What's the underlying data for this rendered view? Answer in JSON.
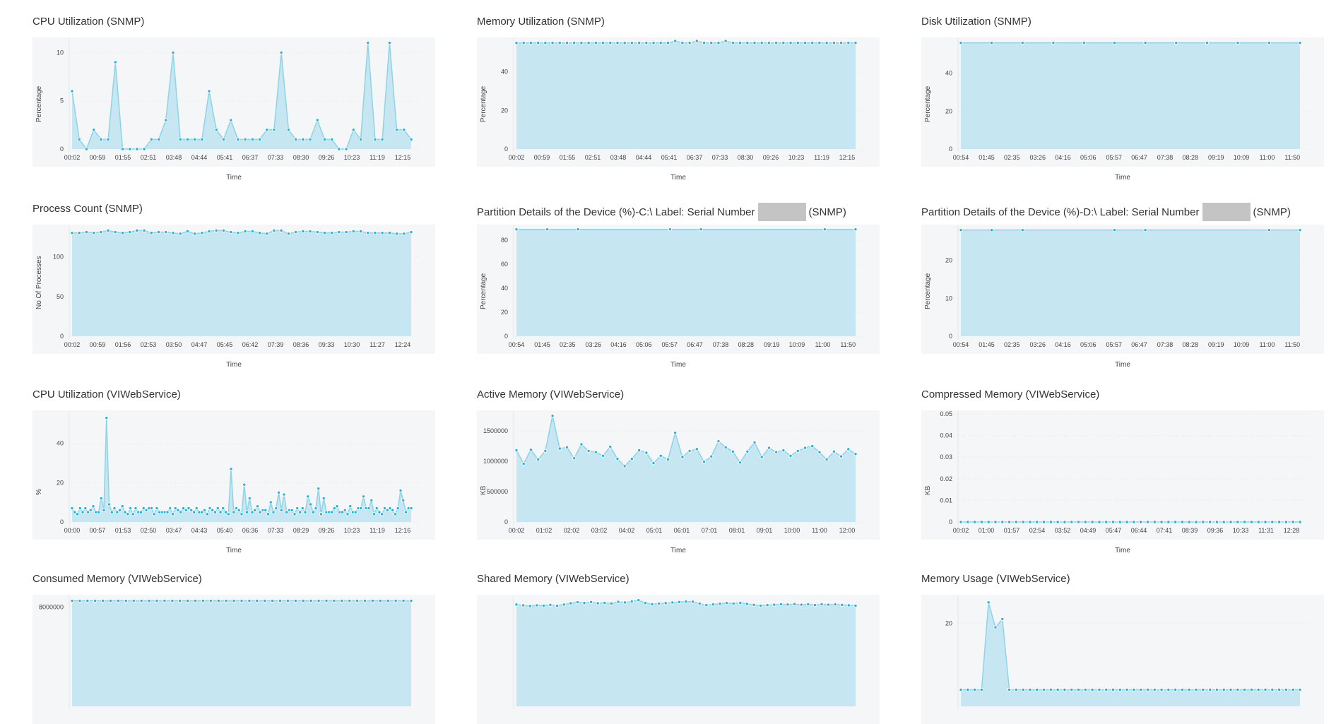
{
  "colors": {
    "fill": "#c6e6f1",
    "line": "#8fd3e8",
    "point": "#1fb4dc",
    "panel_bg": "#f5f6f8",
    "redaction": "#c4c4c4"
  },
  "chart_data": [
    {
      "id": "cpu-snmp",
      "type": "area",
      "title": "CPU Utilization (SNMP)",
      "xlabel": "Time",
      "ylabel": "Percentage",
      "ylim": [
        0,
        11.2
      ],
      "yticks": [
        0,
        5,
        10
      ],
      "x_ticks": [
        "00:02",
        "00:59",
        "01:55",
        "02:51",
        "03:48",
        "04:44",
        "05:41",
        "06:37",
        "07:33",
        "08:30",
        "09:26",
        "10:23",
        "11:19",
        "12:15"
      ],
      "values": [
        6,
        1,
        0,
        2,
        1,
        1,
        9,
        0,
        0,
        0,
        0,
        1,
        1,
        3,
        10,
        1,
        1,
        1,
        1,
        6,
        2,
        1,
        3,
        1,
        1,
        1,
        1,
        2,
        2,
        10,
        2,
        1,
        1,
        1,
        3,
        1,
        1,
        0,
        0,
        2,
        1,
        11,
        1,
        1,
        11,
        2,
        2,
        1
      ]
    },
    {
      "id": "memory-snmp",
      "type": "area",
      "title": "Memory Utilization (SNMP)",
      "xlabel": "Time",
      "ylabel": "Percentage",
      "ylim": [
        0,
        56
      ],
      "yticks": [
        0,
        20,
        40
      ],
      "x_ticks": [
        "00:02",
        "00:59",
        "01:55",
        "02:51",
        "03:48",
        "04:44",
        "05:41",
        "06:37",
        "07:33",
        "08:30",
        "09:26",
        "10:23",
        "11:19",
        "12:15"
      ],
      "values": [
        55,
        55,
        55,
        55,
        55,
        55,
        55,
        55,
        55,
        55,
        55,
        55,
        55,
        55,
        55,
        55,
        55,
        55,
        55,
        55,
        55,
        55,
        56,
        55,
        55,
        56,
        55,
        55,
        55,
        56,
        55,
        55,
        55,
        55,
        55,
        55,
        55,
        55,
        55,
        55,
        55,
        55,
        55,
        55,
        55,
        55,
        55,
        55
      ]
    },
    {
      "id": "disk-snmp",
      "type": "area",
      "title": "Disk Utilization (SNMP)",
      "xlabel": "Time",
      "ylabel": "Percentage",
      "ylim": [
        0,
        57
      ],
      "yticks": [
        0,
        20,
        40
      ],
      "x_ticks": [
        "00:54",
        "01:45",
        "02:35",
        "03:26",
        "04:16",
        "05:06",
        "05:57",
        "06:47",
        "07:38",
        "08:28",
        "09:19",
        "10:09",
        "11:00",
        "11:50"
      ],
      "x": [
        "00:54",
        "01:55",
        "02:56",
        "03:57",
        "04:58",
        "05:58",
        "06:59",
        "08:00",
        "09:01",
        "10:02",
        "11:04",
        "12:05"
      ],
      "values": [
        56,
        56,
        56,
        56,
        56,
        56,
        56,
        56,
        56,
        56,
        56,
        56
      ]
    },
    {
      "id": "process-count-snmp",
      "type": "area",
      "title": "Process Count (SNMP)",
      "xlabel": "Time",
      "ylabel": "No Of Processes",
      "ylim": [
        0,
        136
      ],
      "yticks": [
        0,
        50,
        100
      ],
      "x_ticks": [
        "00:02",
        "00:59",
        "01:56",
        "02:53",
        "03:50",
        "04:47",
        "05:45",
        "06:42",
        "07:39",
        "08:36",
        "09:33",
        "10:30",
        "11:27",
        "12:24"
      ],
      "values": [
        130,
        130,
        131,
        130,
        131,
        133,
        131,
        130,
        131,
        133,
        133,
        130,
        131,
        131,
        130,
        129,
        132,
        129,
        130,
        132,
        133,
        133,
        131,
        130,
        132,
        132,
        130,
        129,
        133,
        133,
        129,
        131,
        132,
        132,
        131,
        130,
        130,
        131,
        131,
        132,
        132,
        130,
        130,
        130,
        130,
        129,
        129,
        131
      ]
    },
    {
      "id": "partition-c-snmp",
      "type": "area",
      "title": "Partition Details of the Device (%)-C:\\ Label: Serial Number",
      "title_suffix": "(SNMP)",
      "redacted": true,
      "xlabel": "Time",
      "ylabel": "Percentage",
      "ylim": [
        0,
        90
      ],
      "yticks": [
        0,
        20,
        40,
        60,
        80
      ],
      "x_ticks": [
        "00:54",
        "01:45",
        "02:35",
        "03:26",
        "04:16",
        "05:06",
        "05:57",
        "06:47",
        "07:38",
        "08:28",
        "09:19",
        "10:09",
        "11:00",
        "11:50"
      ],
      "x": [
        "00:54",
        "01:55",
        "02:56",
        "05:58",
        "06:59",
        "11:04",
        "12:05"
      ],
      "values": [
        89,
        89,
        89,
        89,
        89,
        89,
        89
      ]
    },
    {
      "id": "partition-d-snmp",
      "type": "area",
      "title": "Partition Details of the Device (%)-D:\\ Label: Serial Number",
      "title_suffix": "(SNMP)",
      "redacted": true,
      "xlabel": "Time",
      "ylabel": "Percentage",
      "ylim": [
        0,
        28.5
      ],
      "yticks": [
        0,
        10,
        20
      ],
      "x_ticks": [
        "00:54",
        "01:45",
        "02:35",
        "03:26",
        "04:16",
        "05:06",
        "05:57",
        "06:47",
        "07:38",
        "08:28",
        "09:19",
        "10:09",
        "11:00",
        "11:50"
      ],
      "x": [
        "00:54",
        "01:55",
        "02:56",
        "05:58",
        "06:59",
        "11:04",
        "12:05"
      ],
      "values": [
        28,
        28,
        28,
        28,
        28,
        28,
        28
      ]
    },
    {
      "id": "cpu-viwebservice",
      "type": "area",
      "title": "CPU Utilization (VIWebService)",
      "xlabel": "Time",
      "ylabel": "%",
      "ylim": [
        0,
        55
      ],
      "yticks": [
        0,
        20,
        40
      ],
      "x_ticks": [
        "00:00",
        "00:57",
        "01:53",
        "02:50",
        "03:47",
        "04:43",
        "05:40",
        "06:36",
        "07:33",
        "08:29",
        "09:26",
        "10:23",
        "11:19",
        "12:16"
      ],
      "values": [
        7,
        5,
        4,
        7,
        5,
        7,
        5,
        6,
        8,
        5,
        5,
        12,
        6,
        53,
        9,
        5,
        7,
        5,
        6,
        8,
        5,
        4,
        7,
        4,
        7,
        5,
        5,
        7,
        6,
        7,
        7,
        4,
        7,
        5,
        5,
        5,
        5,
        7,
        4,
        7,
        6,
        5,
        7,
        6,
        7,
        6,
        5,
        7,
        5,
        5,
        6,
        4,
        7,
        6,
        5,
        7,
        5,
        7,
        5,
        4,
        27,
        5,
        7,
        6,
        4,
        19,
        5,
        12,
        5,
        6,
        8,
        5,
        6,
        6,
        4,
        10,
        5,
        7,
        15,
        6,
        14,
        5,
        6,
        6,
        4,
        7,
        5,
        7,
        5,
        13,
        9,
        5,
        7,
        17,
        4,
        12,
        5,
        5,
        5,
        7,
        8,
        5,
        5,
        6,
        4,
        8,
        5,
        5,
        7,
        7,
        13,
        7,
        7,
        11,
        4,
        7,
        5,
        4,
        7,
        6,
        7,
        6,
        4,
        7,
        16,
        11,
        5,
        7,
        7
      ]
    },
    {
      "id": "active-memory-viwebservice",
      "type": "area",
      "title": "Active Memory (VIWebService)",
      "xlabel": "Time",
      "ylabel": "KB",
      "ylim": [
        0,
        1780000
      ],
      "yticks": [
        0,
        500000,
        1000000,
        1500000
      ],
      "x_ticks": [
        "00:02",
        "01:02",
        "02:02",
        "03:02",
        "04:02",
        "05:01",
        "06:01",
        "07:01",
        "08:01",
        "09:01",
        "10:00",
        "11:00",
        "12:00"
      ],
      "values": [
        1180000,
        960000,
        1190000,
        1030000,
        1170000,
        1750000,
        1210000,
        1230000,
        1050000,
        1280000,
        1170000,
        1150000,
        1090000,
        1240000,
        1040000,
        920000,
        1040000,
        1180000,
        1140000,
        970000,
        1090000,
        1030000,
        1470000,
        1070000,
        1170000,
        1200000,
        990000,
        1080000,
        1330000,
        1230000,
        1160000,
        980000,
        1160000,
        1310000,
        1070000,
        1220000,
        1150000,
        1180000,
        1090000,
        1170000,
        1220000,
        1250000,
        1150000,
        1030000,
        1160000,
        1080000,
        1200000,
        1120000
      ]
    },
    {
      "id": "compressed-memory-viwebservice",
      "type": "area",
      "title": "Compressed Memory (VIWebService)",
      "xlabel": "Time",
      "ylabel": "KB",
      "ylim": [
        0,
        0.05
      ],
      "yticks": [
        0,
        0.01,
        0.02,
        0.03,
        0.04,
        0.05
      ],
      "x_ticks": [
        "00:02",
        "01:00",
        "01:57",
        "02:54",
        "03:52",
        "04:49",
        "05:47",
        "06:44",
        "07:41",
        "08:39",
        "09:36",
        "10:33",
        "11:31",
        "12:28"
      ],
      "values": [
        0,
        0,
        0,
        0,
        0,
        0,
        0,
        0,
        0,
        0,
        0,
        0,
        0,
        0,
        0,
        0,
        0,
        0,
        0,
        0,
        0,
        0,
        0,
        0,
        0,
        0,
        0,
        0,
        0,
        0,
        0,
        0,
        0,
        0,
        0,
        0,
        0,
        0,
        0,
        0,
        0,
        0,
        0,
        0,
        0,
        0,
        0,
        0,
        0,
        0
      ]
    },
    {
      "id": "consumed-memory-viwebservice",
      "type": "area",
      "title": "Consumed Memory (VIWebService)",
      "ylim": [
        0,
        8700000
      ],
      "yticks": [
        8000000
      ],
      "values": [
        8500000,
        8500000,
        8500000,
        8500000,
        8500000,
        8500000,
        8500000,
        8500000,
        8500000,
        8500000,
        8500000,
        8500000,
        8500000,
        8500000,
        8500000,
        8500000,
        8500000,
        8500000,
        8500000,
        8500000,
        8500000,
        8500000,
        8500000,
        8500000,
        8500000,
        8500000,
        8500000,
        8500000,
        8500000,
        8500000,
        8500000,
        8500000,
        8500000,
        8500000,
        8500000,
        8500000,
        8500000,
        8500000,
        8500000,
        8500000,
        8500000,
        8500000,
        8500000,
        8500000,
        8500000
      ]
    },
    {
      "id": "shared-memory-viwebservice",
      "type": "area",
      "title": "Shared Memory (VIWebService)",
      "ylim": [
        0,
        69000
      ],
      "values": [
        65000,
        64500,
        64000,
        64500,
        64300,
        64800,
        64200,
        65000,
        65800,
        66500,
        66000,
        66600,
        65800,
        66100,
        65700,
        66700,
        66300,
        67000,
        67800,
        66000,
        65200,
        65600,
        65900,
        66300,
        66600,
        66900,
        66800,
        65600,
        64600,
        65100,
        65500,
        66000,
        65600,
        66100,
        65400,
        64800,
        64300,
        64600,
        64900,
        65200,
        65000,
        65300,
        64900,
        65200,
        64700,
        65200,
        64900,
        65100,
        64800,
        64500,
        64300
      ]
    },
    {
      "id": "memory-usage-viwebservice",
      "type": "area",
      "title": "Memory Usage (VIWebService)",
      "ylim": [
        0,
        26
      ],
      "yticks": [
        20
      ],
      "values": [
        4,
        4,
        4,
        4,
        25,
        19,
        21,
        4,
        4,
        4,
        4,
        4,
        4,
        4,
        4,
        4,
        4,
        4,
        4,
        4,
        4,
        4,
        4,
        4,
        4,
        4,
        4,
        4,
        4,
        4,
        4,
        4,
        4,
        4,
        4,
        4,
        4,
        4,
        4,
        4,
        4,
        4,
        4,
        4,
        4,
        4,
        4,
        4,
        4,
        4
      ]
    }
  ]
}
